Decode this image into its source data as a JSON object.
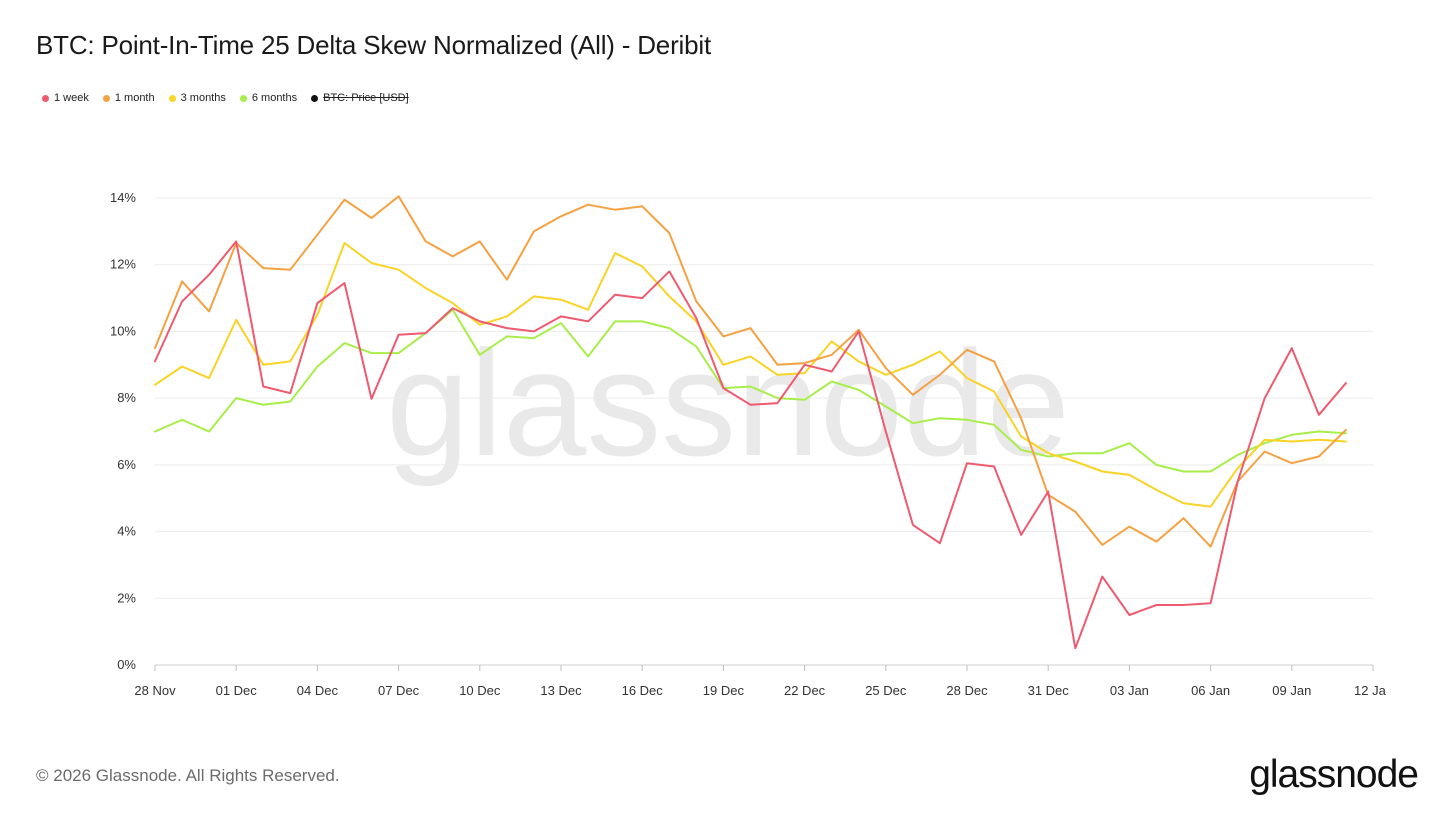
{
  "title": "BTC: Point-In-Time 25 Delta Skew Normalized (All) - Deribit",
  "legend": [
    {
      "label": "1 week",
      "color": "#ee5a6f",
      "active": true
    },
    {
      "label": "1 month",
      "color": "#f5a142",
      "active": true
    },
    {
      "label": "3 months",
      "color": "#f9d326",
      "active": true
    },
    {
      "label": "6 months",
      "color": "#a8ee4a",
      "active": true
    },
    {
      "label": "BTC: Price [USD]",
      "color": "#111111",
      "active": false
    }
  ],
  "watermark": "glassnode",
  "footer": {
    "copyright": "© 2026 Glassnode. All Rights Reserved.",
    "brand": "glassnode"
  },
  "chart_data": {
    "type": "line",
    "x_start": "2025-11-28",
    "x_ticks": [
      "28 Nov",
      "01 Dec",
      "04 Dec",
      "07 Dec",
      "10 Dec",
      "13 Dec",
      "16 Dec",
      "19 Dec",
      "22 Dec",
      "25 Dec",
      "28 Dec",
      "31 Dec",
      "03 Jan",
      "06 Jan",
      "09 Jan",
      "12 Ja"
    ],
    "y_ticks": [
      "0%",
      "2%",
      "4%",
      "6%",
      "8%",
      "10%",
      "12%",
      "14%"
    ],
    "ylim": [
      0,
      14
    ],
    "grid": true,
    "legend_position": "top-left",
    "series": [
      {
        "name": "1 week",
        "color": "#ee5a6f",
        "values": [
          9.1,
          10.9,
          11.7,
          12.7,
          8.35,
          8.15,
          10.85,
          11.45,
          7.98,
          9.9,
          9.95,
          10.7,
          10.3,
          10.1,
          10.0,
          10.45,
          10.3,
          11.1,
          11.0,
          11.8,
          10.4,
          8.3,
          7.8,
          7.85,
          9.0,
          8.8,
          10.0,
          7.0,
          4.2,
          3.65,
          6.05,
          5.95,
          3.9,
          5.2,
          0.5,
          2.65,
          1.5,
          1.8,
          1.8,
          1.85,
          5.5,
          8.0,
          9.5,
          7.5,
          8.45
        ]
      },
      {
        "name": "1 month",
        "color": "#f5a142",
        "values": [
          9.5,
          11.5,
          10.6,
          12.65,
          11.9,
          11.85,
          12.9,
          13.95,
          13.4,
          14.05,
          12.7,
          12.25,
          12.7,
          11.55,
          13.0,
          13.45,
          13.8,
          13.65,
          13.75,
          12.95,
          10.9,
          9.85,
          10.1,
          9.0,
          9.05,
          9.3,
          10.05,
          8.9,
          8.1,
          8.7,
          9.45,
          9.1,
          7.4,
          5.1,
          4.6,
          3.6,
          4.15,
          3.7,
          4.4,
          3.55,
          5.5,
          6.4,
          6.05,
          6.25,
          7.05
        ]
      },
      {
        "name": "3 months",
        "color": "#f9d326",
        "values": [
          8.4,
          8.95,
          8.6,
          10.35,
          9.0,
          9.1,
          10.5,
          12.65,
          12.05,
          11.85,
          11.3,
          10.85,
          10.2,
          10.45,
          11.05,
          10.95,
          10.65,
          12.35,
          11.95,
          11.05,
          10.3,
          9.0,
          9.25,
          8.7,
          8.75,
          9.7,
          9.1,
          8.7,
          9.0,
          9.4,
          8.6,
          8.2,
          6.85,
          6.35,
          6.1,
          5.8,
          5.7,
          5.25,
          4.85,
          4.75,
          5.9,
          6.75,
          6.7,
          6.75,
          6.7
        ]
      },
      {
        "name": "6 months",
        "color": "#a8ee4a",
        "values": [
          7.0,
          7.35,
          7.0,
          8.0,
          7.8,
          7.9,
          8.95,
          9.65,
          9.35,
          9.35,
          9.95,
          10.65,
          9.3,
          9.85,
          9.8,
          10.25,
          9.25,
          10.3,
          10.3,
          10.1,
          9.55,
          8.3,
          8.35,
          8.0,
          7.95,
          8.5,
          8.25,
          7.75,
          7.25,
          7.4,
          7.35,
          7.2,
          6.45,
          6.25,
          6.35,
          6.35,
          6.65,
          6.0,
          5.8,
          5.8,
          6.3,
          6.65,
          6.9,
          7.0,
          6.95
        ]
      }
    ]
  }
}
